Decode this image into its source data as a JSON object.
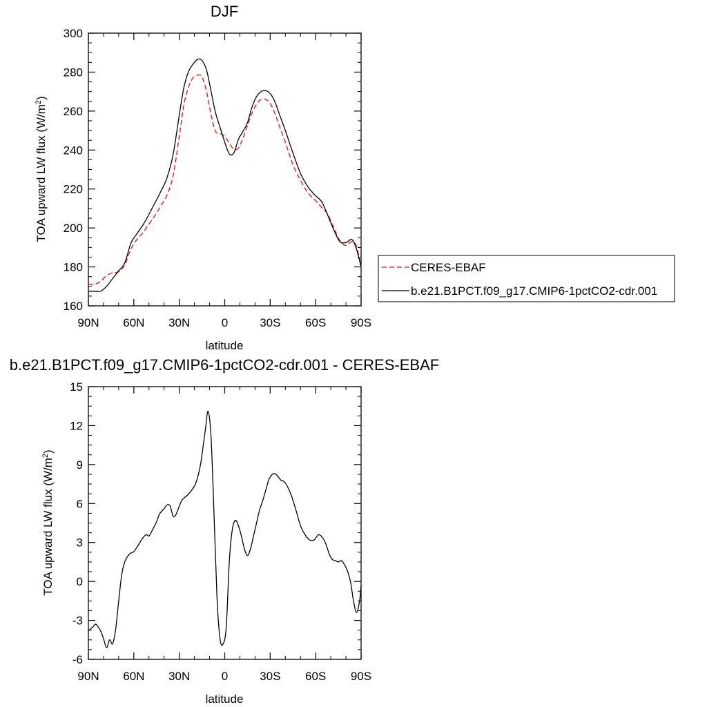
{
  "chart_data": [
    {
      "type": "line",
      "title": "DJF",
      "xlabel": "latitude",
      "ylabel": "TOA upward LW flux (W/m",
      "ylabel_sup": "2",
      "ylabel_end": ")",
      "xlim": [
        90,
        -90
      ],
      "ylim": [
        160,
        300
      ],
      "yticks": [
        160,
        180,
        200,
        220,
        240,
        260,
        280,
        300
      ],
      "xticks": [
        {
          "lat": 90,
          "label": "90N"
        },
        {
          "lat": 60,
          "label": "60N"
        },
        {
          "lat": 30,
          "label": "30N"
        },
        {
          "lat": 0,
          "label": "0"
        },
        {
          "lat": -30,
          "label": "30S"
        },
        {
          "lat": -60,
          "label": "60S"
        },
        {
          "lat": -90,
          "label": "90S"
        }
      ],
      "grid": false,
      "legend": "right",
      "series": [
        {
          "name": "CERES-EBAF",
          "color": "#ff0000",
          "dashed": true,
          "x": [
            90,
            86,
            82,
            78,
            74,
            70,
            66,
            62,
            58,
            54,
            50,
            46,
            42,
            38,
            34,
            30,
            27,
            24,
            21,
            18,
            15,
            12,
            9,
            6,
            3,
            0,
            -3,
            -6,
            -9,
            -12,
            -15,
            -18,
            -21,
            -24,
            -27,
            -30,
            -33,
            -36,
            -40,
            -45,
            -50,
            -55,
            -60,
            -64,
            -68,
            -72,
            -76,
            -80,
            -84,
            -87,
            -90
          ],
          "y": [
            171,
            171,
            172.5,
            175.5,
            177,
            177.5,
            181,
            189,
            194,
            197.5,
            202,
            206.5,
            211.5,
            217,
            227,
            247,
            263,
            272,
            277,
            278.5,
            277.5,
            270,
            258,
            249.5,
            248.5,
            247,
            243.5,
            240.5,
            241,
            246,
            252.5,
            259,
            263.5,
            266,
            266,
            264,
            259,
            252.5,
            244,
            232.5,
            224.5,
            218,
            214,
            210.5,
            207,
            200,
            193.5,
            191,
            193,
            190.5,
            180
          ]
        },
        {
          "name": "b.e21.B1PCT.f09_g17.CMIP6-1pctCO2-cdr.001",
          "color": "#000000",
          "dashed": false,
          "x": [
            90,
            86,
            82,
            78,
            74,
            70,
            66,
            62,
            58,
            54,
            50,
            46,
            42,
            38,
            34,
            30,
            27,
            24,
            21,
            18,
            15,
            12,
            9,
            6,
            3,
            0,
            -3,
            -6,
            -9,
            -12,
            -15,
            -18,
            -21,
            -24,
            -27,
            -30,
            -33,
            -36,
            -40,
            -45,
            -50,
            -55,
            -60,
            -64,
            -68,
            -72,
            -76,
            -80,
            -84,
            -87,
            -90
          ],
          "y": [
            167.5,
            167.5,
            167.5,
            170,
            174,
            178,
            182,
            192,
            197,
            201.5,
            207,
            213,
            219,
            226,
            238,
            258,
            272,
            280,
            284,
            286.5,
            286,
            281,
            270,
            259,
            251.5,
            244,
            238,
            238.5,
            245.5,
            249.5,
            254,
            262,
            267.5,
            270,
            270.5,
            269,
            265,
            258.5,
            250,
            238.5,
            228,
            221,
            216.5,
            213.5,
            206.5,
            199,
            193,
            192.5,
            194,
            189,
            180
          ]
        }
      ]
    },
    {
      "type": "line",
      "title": "b.e21.B1PCT.f09_g17.CMIP6-1pctCO2-cdr.001 - CERES-EBAF",
      "xlabel": "latitude",
      "ylabel": "TOA upward LW flux (W/m",
      "ylabel_sup": "2",
      "ylabel_end": ")",
      "xlim": [
        90,
        -90
      ],
      "ylim": [
        -6,
        15
      ],
      "yticks": [
        -6,
        -3,
        0,
        3,
        6,
        9,
        12,
        15
      ],
      "xticks": [
        {
          "lat": 90,
          "label": "90N"
        },
        {
          "lat": 60,
          "label": "60N"
        },
        {
          "lat": 30,
          "label": "30N"
        },
        {
          "lat": 0,
          "label": "0"
        },
        {
          "lat": -30,
          "label": "30S"
        },
        {
          "lat": -60,
          "label": "60S"
        },
        {
          "lat": -90,
          "label": "90S"
        }
      ],
      "grid": false,
      "series": [
        {
          "color": "#000000",
          "dashed": false,
          "x": [
            90,
            87,
            85,
            82,
            80,
            78,
            76,
            74,
            72,
            70,
            68,
            66,
            63,
            60,
            57,
            55,
            52,
            50,
            48,
            45,
            43,
            40,
            38,
            36,
            34,
            32,
            30,
            28,
            25,
            22,
            19,
            16,
            13,
            11,
            9,
            7,
            5,
            3,
            1,
            -1,
            -3,
            -5,
            -7,
            -9,
            -11,
            -13,
            -15,
            -17,
            -19,
            -21,
            -23,
            -25,
            -27,
            -29,
            -31,
            -33,
            -35,
            -37,
            -39,
            -41,
            -44,
            -47,
            -50,
            -53,
            -56,
            -59,
            -62,
            -65,
            -67,
            -69,
            -71,
            -73,
            -75,
            -77,
            -79,
            -81,
            -83,
            -85,
            -87,
            -89,
            -90
          ],
          "y": [
            -3.8,
            -3.5,
            -3.3,
            -3.8,
            -4.4,
            -5.1,
            -4.5,
            -4.8,
            -3.7,
            -1.5,
            0.5,
            1.5,
            2.1,
            2.3,
            2.8,
            3.2,
            3.6,
            3.5,
            3.9,
            4.6,
            5.2,
            5.6,
            5.9,
            5.8,
            5.0,
            5.2,
            5.8,
            6.3,
            6.6,
            7.0,
            7.6,
            9.0,
            11.5,
            13.1,
            11.0,
            5.0,
            -1.5,
            -4.5,
            -4.8,
            -3.5,
            1.5,
            4.0,
            4.7,
            4.3,
            3.5,
            2.5,
            2.0,
            2.5,
            3.5,
            4.5,
            5.5,
            6.2,
            7.0,
            7.8,
            8.2,
            8.3,
            8.1,
            7.8,
            7.7,
            7.4,
            6.6,
            5.5,
            4.3,
            3.6,
            3.2,
            3.2,
            3.6,
            3.3,
            2.8,
            2.1,
            1.7,
            1.6,
            1.5,
            1.6,
            1.3,
            0.8,
            0.0,
            -1.5,
            -2.4,
            -1.5,
            -0.3
          ]
        }
      ]
    }
  ]
}
